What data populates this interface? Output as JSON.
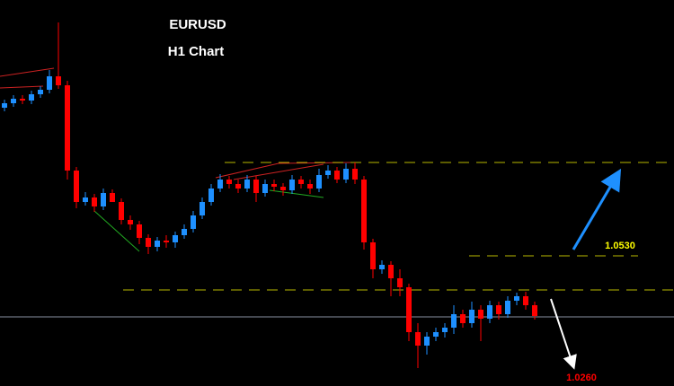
{
  "chart_data": {
    "type": "candlestick",
    "title": "EURUSD",
    "subtitle": "H1 Chart",
    "ylim": [
      1.024,
      1.11
    ],
    "up_color": "#1e90ff",
    "down_color": "#ff0000",
    "open": [
      1.086,
      1.087,
      1.088,
      1.0876,
      1.089,
      1.09,
      1.093,
      1.091,
      1.072,
      1.065,
      1.066,
      1.064,
      1.067,
      1.065,
      1.061,
      1.06,
      1.057,
      1.055,
      1.0564,
      1.056,
      1.0576,
      1.059,
      1.062,
      1.065,
      1.068,
      1.07,
      1.069,
      1.068,
      1.07,
      1.067,
      1.069,
      1.0684,
      1.0676,
      1.07,
      1.069,
      1.068,
      1.071,
      1.072,
      1.07,
      1.0724,
      1.07,
      1.056,
      1.05,
      1.051,
      1.048,
      1.046,
      1.036,
      1.033,
      1.035,
      1.036,
      1.037,
      1.04,
      1.038,
      1.041,
      1.039,
      1.042,
      1.04,
      1.043,
      1.044,
      1.042
    ],
    "high": [
      1.0878,
      1.0888,
      1.0888,
      1.0898,
      1.0908,
      1.0944,
      1.105,
      1.092,
      1.0728,
      1.0672,
      1.0668,
      1.068,
      1.0678,
      1.0658,
      1.062,
      1.0608,
      1.0578,
      1.0572,
      1.0576,
      1.0584,
      1.06,
      1.063,
      1.066,
      1.069,
      1.0712,
      1.0708,
      1.07,
      1.071,
      1.0708,
      1.07,
      1.07,
      1.0692,
      1.071,
      1.0708,
      1.07,
      1.0724,
      1.0732,
      1.0728,
      1.0736,
      1.0738,
      1.0708,
      1.0568,
      1.052,
      1.0518,
      1.05,
      1.0468,
      1.038,
      1.036,
      1.037,
      1.038,
      1.042,
      1.041,
      1.0428,
      1.042,
      1.043,
      1.0428,
      1.044,
      1.0448,
      1.045,
      1.0428
    ],
    "low": [
      1.0852,
      1.0862,
      1.0868,
      1.0868,
      1.0882,
      1.0892,
      1.0902,
      1.07,
      1.0636,
      1.0642,
      1.0628,
      1.0632,
      1.065,
      1.06,
      1.0588,
      1.0556,
      1.0534,
      1.054,
      1.0548,
      1.0548,
      1.0568,
      1.0582,
      1.0612,
      1.0642,
      1.0672,
      1.068,
      1.067,
      1.0672,
      1.065,
      1.0662,
      1.0674,
      1.0664,
      1.0668,
      1.068,
      1.0668,
      1.0672,
      1.0702,
      1.0692,
      1.0692,
      1.069,
      1.0544,
      1.048,
      1.049,
      1.044,
      1.044,
      1.034,
      1.028,
      1.031,
      1.034,
      1.0348,
      1.0356,
      1.037,
      1.037,
      1.034,
      1.038,
      1.0388,
      1.0392,
      1.042,
      1.041,
      1.0388
    ],
    "close": [
      1.087,
      1.088,
      1.0876,
      1.089,
      1.09,
      1.093,
      1.091,
      1.072,
      1.065,
      1.066,
      1.064,
      1.067,
      1.065,
      1.061,
      1.06,
      1.057,
      1.055,
      1.0564,
      1.056,
      1.0576,
      1.059,
      1.062,
      1.065,
      1.068,
      1.07,
      1.069,
      1.068,
      1.07,
      1.067,
      1.069,
      1.0684,
      1.0676,
      1.07,
      1.069,
      1.068,
      1.071,
      1.072,
      1.07,
      1.0724,
      1.07,
      1.056,
      1.05,
      1.051,
      1.048,
      1.046,
      1.036,
      1.033,
      1.035,
      1.036,
      1.037,
      1.04,
      1.038,
      1.041,
      1.039,
      1.042,
      1.04,
      1.043,
      1.044,
      1.042,
      1.0396
    ],
    "levels": [
      1.0738,
      1.0454,
      1.0394
    ],
    "annotations": [
      {
        "value": 1.053,
        "label": "1.0530",
        "color": "#ffff00"
      },
      {
        "value": 1.026,
        "label": "1.0260",
        "color": "#ff0000"
      }
    ]
  }
}
